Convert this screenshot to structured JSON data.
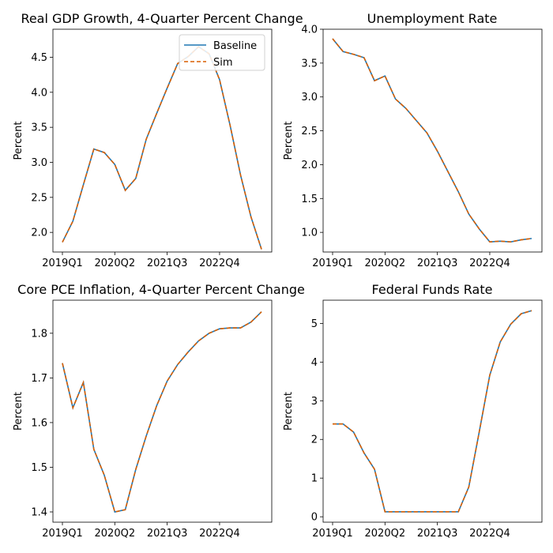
{
  "figure": {
    "legend": {
      "placement": "upper right of first panel",
      "entries": [
        "Baseline",
        "Sim"
      ]
    }
  },
  "chart_data": [
    {
      "type": "line",
      "title": "Real GDP Growth, 4-Quarter Percent Change",
      "ylabel": "Percent",
      "xlabel": "",
      "x": [
        "2019Q1",
        "2019Q2",
        "2019Q3",
        "2019Q4",
        "2020Q1",
        "2020Q2",
        "2020Q3",
        "2020Q4",
        "2021Q1",
        "2021Q2",
        "2021Q3",
        "2021Q4",
        "2022Q1",
        "2022Q2",
        "2022Q3",
        "2022Q4",
        "2023Q1",
        "2023Q2",
        "2023Q3",
        "2023Q4"
      ],
      "xticks": [
        "2019Q1",
        "2020Q2",
        "2021Q3",
        "2022Q4"
      ],
      "yticks": [
        "2.0",
        "2.5",
        "3.0",
        "3.5",
        "4.0",
        "4.5"
      ],
      "ylim": [
        1.72,
        4.9
      ],
      "series": [
        {
          "name": "Baseline",
          "color": "#1f77b4",
          "style": "solid",
          "values": [
            1.86,
            2.16,
            2.68,
            3.19,
            3.14,
            2.97,
            2.6,
            2.77,
            3.33,
            3.7,
            4.06,
            4.41,
            4.51,
            4.65,
            4.55,
            4.18,
            3.53,
            2.82,
            2.22,
            1.76
          ]
        },
        {
          "name": "Sim",
          "color": "#d95f02",
          "style": "dashed",
          "values": [
            1.86,
            2.16,
            2.68,
            3.19,
            3.14,
            2.97,
            2.6,
            2.77,
            3.33,
            3.7,
            4.06,
            4.41,
            4.51,
            4.65,
            4.55,
            4.18,
            3.53,
            2.82,
            2.22,
            1.76
          ]
        }
      ],
      "legend": true,
      "grid": false
    },
    {
      "type": "line",
      "title": "Unemployment Rate",
      "ylabel": "Percent",
      "xlabel": "",
      "x": [
        "2019Q1",
        "2019Q2",
        "2019Q3",
        "2019Q4",
        "2020Q1",
        "2020Q2",
        "2020Q3",
        "2020Q4",
        "2021Q1",
        "2021Q2",
        "2021Q3",
        "2021Q4",
        "2022Q1",
        "2022Q2",
        "2022Q3",
        "2022Q4",
        "2023Q1",
        "2023Q2",
        "2023Q3",
        "2023Q4"
      ],
      "xticks": [
        "2019Q1",
        "2020Q2",
        "2021Q3",
        "2022Q4"
      ],
      "yticks": [
        "1.0",
        "1.5",
        "2.0",
        "2.5",
        "3.0",
        "3.5",
        "4.0"
      ],
      "ylim": [
        0.71,
        4.0
      ],
      "series": [
        {
          "name": "Baseline",
          "color": "#1f77b4",
          "style": "solid",
          "values": [
            3.86,
            3.67,
            3.63,
            3.58,
            3.24,
            3.31,
            2.97,
            2.83,
            2.65,
            2.47,
            2.2,
            1.9,
            1.6,
            1.27,
            1.05,
            0.86,
            0.87,
            0.86,
            0.89,
            0.91
          ]
        },
        {
          "name": "Sim",
          "color": "#d95f02",
          "style": "dashed",
          "values": [
            3.86,
            3.67,
            3.63,
            3.58,
            3.24,
            3.31,
            2.97,
            2.83,
            2.65,
            2.47,
            2.2,
            1.9,
            1.6,
            1.27,
            1.05,
            0.86,
            0.87,
            0.86,
            0.89,
            0.91
          ]
        }
      ],
      "legend": false,
      "grid": false
    },
    {
      "type": "line",
      "title": "Core PCE Inflation, 4-Quarter Percent Change",
      "ylabel": "Percent",
      "xlabel": "",
      "x": [
        "2019Q1",
        "2019Q2",
        "2019Q3",
        "2019Q4",
        "2020Q1",
        "2020Q2",
        "2020Q3",
        "2020Q4",
        "2021Q1",
        "2021Q2",
        "2021Q3",
        "2021Q4",
        "2022Q1",
        "2022Q2",
        "2022Q3",
        "2022Q4",
        "2023Q1",
        "2023Q2",
        "2023Q3",
        "2023Q4"
      ],
      "xticks": [
        "2019Q1",
        "2020Q2",
        "2021Q3",
        "2022Q4"
      ],
      "yticks": [
        "1.4",
        "1.5",
        "1.6",
        "1.7",
        "1.8"
      ],
      "ylim": [
        1.377,
        1.874
      ],
      "series": [
        {
          "name": "Baseline",
          "color": "#1f77b4",
          "style": "solid",
          "values": [
            1.733,
            1.633,
            1.69,
            1.54,
            1.482,
            1.4,
            1.405,
            1.495,
            1.57,
            1.638,
            1.693,
            1.73,
            1.758,
            1.783,
            1.8,
            1.81,
            1.812,
            1.812,
            1.825,
            1.848
          ]
        },
        {
          "name": "Sim",
          "color": "#d95f02",
          "style": "dashed",
          "values": [
            1.733,
            1.633,
            1.69,
            1.54,
            1.482,
            1.4,
            1.405,
            1.495,
            1.57,
            1.638,
            1.693,
            1.73,
            1.758,
            1.783,
            1.8,
            1.81,
            1.812,
            1.812,
            1.825,
            1.848
          ]
        }
      ],
      "legend": false,
      "grid": false
    },
    {
      "type": "line",
      "title": "Federal Funds Rate",
      "ylabel": "Percent",
      "xlabel": "",
      "x": [
        "2019Q1",
        "2019Q2",
        "2019Q3",
        "2019Q4",
        "2020Q1",
        "2020Q2",
        "2020Q3",
        "2020Q4",
        "2021Q1",
        "2021Q2",
        "2021Q3",
        "2021Q4",
        "2022Q1",
        "2022Q2",
        "2022Q3",
        "2022Q4",
        "2023Q1",
        "2023Q2",
        "2023Q3",
        "2023Q4"
      ],
      "xticks": [
        "2019Q1",
        "2020Q2",
        "2021Q3",
        "2022Q4"
      ],
      "yticks": [
        "0",
        "1",
        "2",
        "3",
        "4",
        "5"
      ],
      "ylim": [
        -0.14,
        5.6
      ],
      "series": [
        {
          "name": "Baseline",
          "color": "#1f77b4",
          "style": "solid",
          "values": [
            2.4,
            2.4,
            2.19,
            1.65,
            1.23,
            0.13,
            0.13,
            0.13,
            0.13,
            0.13,
            0.13,
            0.13,
            0.13,
            0.77,
            2.2,
            3.66,
            4.52,
            4.98,
            5.25,
            5.33
          ]
        },
        {
          "name": "Sim",
          "color": "#d95f02",
          "style": "dashed",
          "values": [
            2.4,
            2.4,
            2.19,
            1.65,
            1.23,
            0.13,
            0.13,
            0.13,
            0.13,
            0.13,
            0.13,
            0.13,
            0.13,
            0.77,
            2.2,
            3.66,
            4.52,
            4.98,
            5.25,
            5.33
          ]
        }
      ],
      "legend": false,
      "grid": false
    }
  ]
}
